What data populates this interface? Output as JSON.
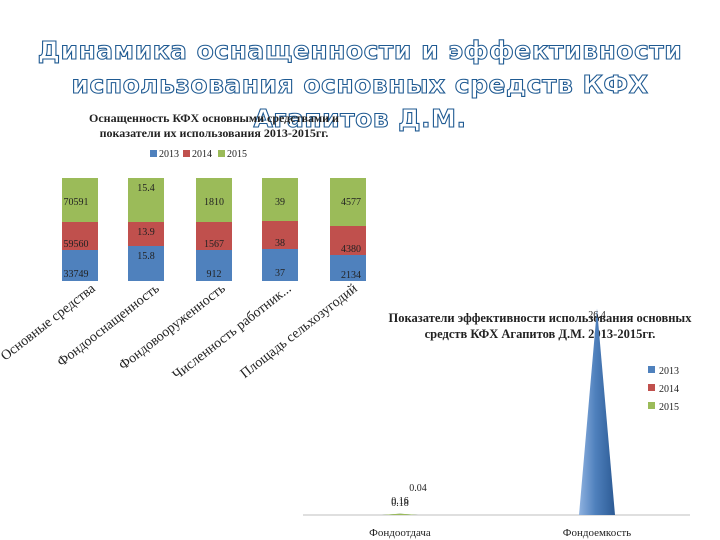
{
  "slide": {
    "title_line1": "Динамика оснащенности и эффективности",
    "title_line2": "использования основных средств КФХ Агапитов Д.М."
  },
  "colors": {
    "2013": "#4f81bd",
    "2014": "#c0504d",
    "2015": "#9bbb59",
    "title_stroke": "#1f5a92"
  },
  "chart_data": [
    {
      "type": "stacked-bar",
      "title": "Оснащенность КФХ основными средствами и показатели их использования 2013-2015гг.",
      "legend_position": "top",
      "categories": [
        "Основные средства",
        "Фондооснащенность",
        "Фондовооруженность",
        "Численность работник...",
        "Площадь сельхозугодий"
      ],
      "series": [
        {
          "name": "2013",
          "values": [
            "33749",
            "15.8",
            "912",
            "37",
            "2134"
          ]
        },
        {
          "name": "2014",
          "values": [
            "59560",
            "13.9",
            "1567",
            "38",
            "4380"
          ]
        },
        {
          "name": "2015",
          "values": [
            "70591",
            "15.4",
            "1810",
            "39",
            "4577"
          ]
        }
      ]
    },
    {
      "type": "bar",
      "shape": "cone",
      "title": "Показатели эффективности использования основных средств КФХ Агапитов Д.М. 2013-2015гг.",
      "legend_position": "right",
      "categories": [
        "Фондоотдача",
        "Фондоемкость"
      ],
      "series": [
        {
          "name": "2013",
          "values": [
            0.16,
            26.4
          ]
        },
        {
          "name": "2014",
          "values": [
            0.04,
            null
          ]
        },
        {
          "name": "2015",
          "values": [
            0.18,
            null
          ]
        }
      ],
      "data_labels": [
        {
          "category": "Фондоотдача",
          "text": "0.04"
        },
        {
          "category": "Фондоотдача",
          "text": "0.16"
        },
        {
          "category": "Фондоотдача",
          "text": "0.18"
        },
        {
          "category": "Фондоемкость",
          "text": "26.4"
        }
      ],
      "ylim": [
        0,
        28
      ]
    }
  ]
}
